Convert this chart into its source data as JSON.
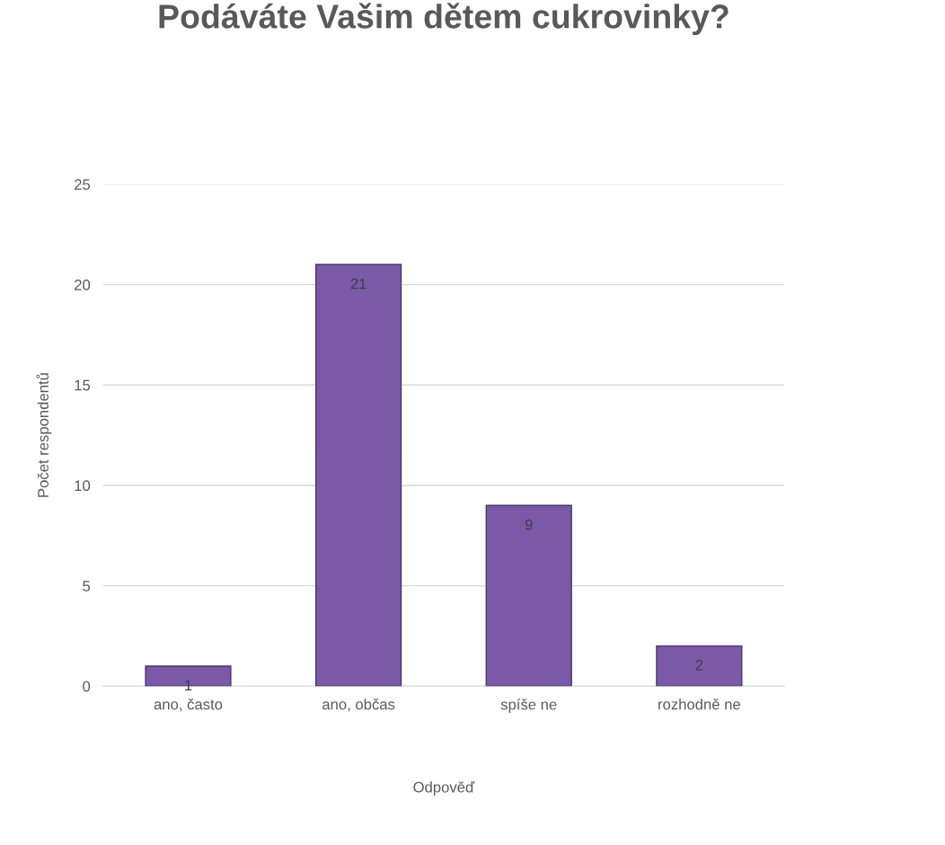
{
  "chart_data": {
    "type": "bar",
    "title": "Podáváte Vašim dětem cukrovinky?",
    "xlabel": "Odpověď",
    "ylabel": "Počet respondentů",
    "categories": [
      "ano, často",
      "ano, občas",
      "spíše ne",
      "rozhodně ne"
    ],
    "values": [
      1,
      21,
      9,
      2
    ],
    "color": "#7a5aa6",
    "ylim": [
      0,
      25
    ],
    "yticks": [
      0,
      5,
      10,
      15,
      20,
      25
    ],
    "grid": "y",
    "data_labels": true,
    "legend": false
  }
}
